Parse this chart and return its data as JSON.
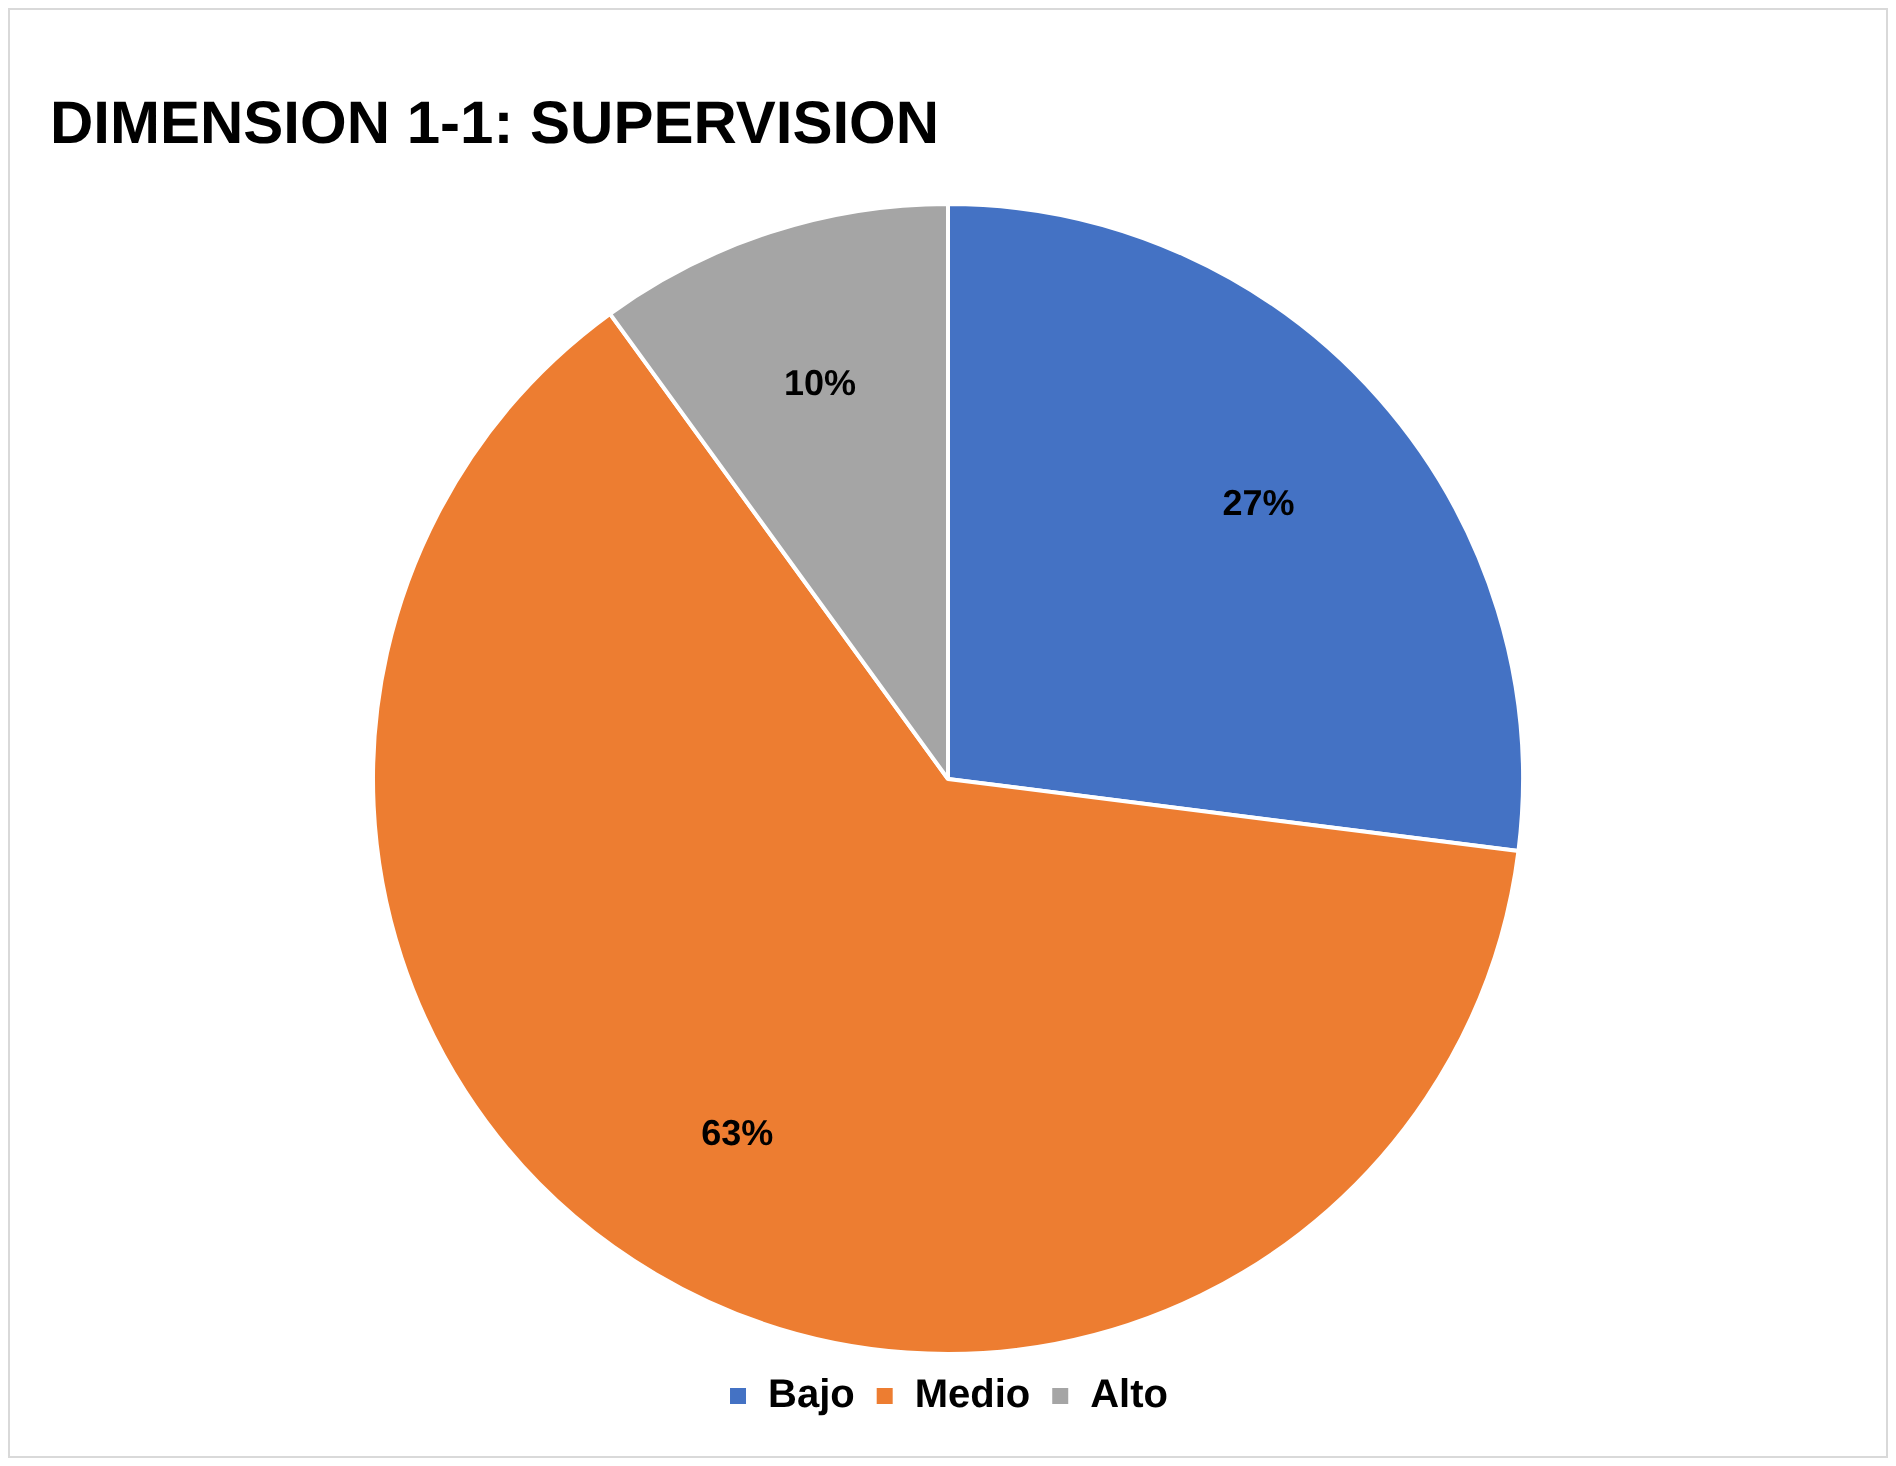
{
  "chart_data": {
    "type": "pie",
    "title": "DIMENSION 1-1: SUPERVISION",
    "categories": [
      "Bajo",
      "Medio",
      "Alto"
    ],
    "values": [
      27,
      63,
      10
    ],
    "colors": [
      "#4472c4",
      "#ed7d31",
      "#a5a5a5"
    ],
    "value_labels": [
      "27%",
      "63%",
      "10%"
    ],
    "legend": "bottom"
  }
}
